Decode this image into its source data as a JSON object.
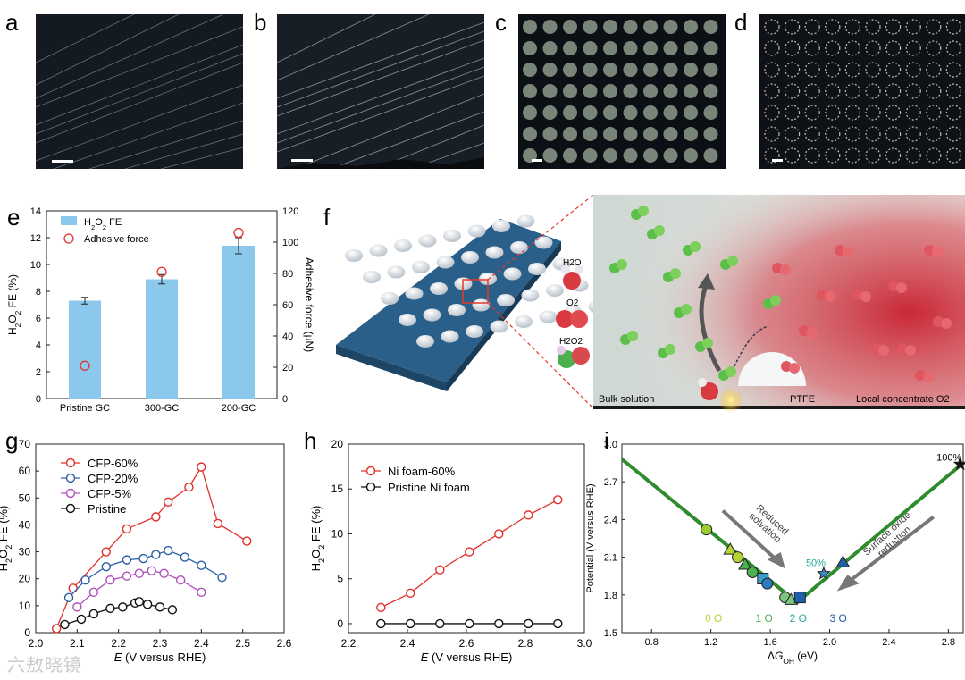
{
  "panels": {
    "a": "a",
    "b": "b",
    "c": "c",
    "d": "d",
    "e": "e",
    "f": "f",
    "g": "g",
    "h": "h",
    "i": "i"
  },
  "panel_f": {
    "molecules": [
      "H2O",
      "O2",
      "H2O2"
    ],
    "labels": {
      "bulk": "Bulk solution",
      "ptfe": "PTFE",
      "local": "Local concentrate O2"
    }
  },
  "watermark": "六敖晓镜",
  "colors": {
    "blue_bar": "#8cc8ec",
    "red": "#e2302a",
    "blue": "#2c5fa8",
    "purple": "#b24fbf",
    "black": "#111111",
    "green": "#2e8b2e"
  },
  "chart_data": [
    {
      "id": "e",
      "type": "bar",
      "categories": [
        "Pristine GC",
        "300-GC",
        "200-GC"
      ],
      "series": [
        {
          "name": "H2O2 FE",
          "values": [
            7.3,
            8.9,
            11.4
          ],
          "errors": [
            0.25,
            0.35,
            0.6
          ],
          "axis": "left"
        },
        {
          "name": "Adhesive force",
          "values": [
            21,
            81,
            106
          ],
          "axis": "right",
          "marker": "open-circle"
        }
      ],
      "ylabel": "H2O2 FE (%)",
      "ylabel_right": "Adhesive force (μN)",
      "ylim": [
        0,
        14
      ],
      "ylim_right": [
        0,
        120
      ],
      "yticks": [
        0,
        2,
        4,
        6,
        8,
        10,
        12,
        14
      ],
      "yticks_right": [
        0,
        20,
        40,
        60,
        80,
        100,
        120
      ],
      "legend": [
        "H2O2 FE",
        "Adhesive force"
      ]
    },
    {
      "id": "g",
      "type": "line",
      "xlabel": "E (V versus RHE)",
      "ylabel": "H2O2 FE (%)",
      "xlim": [
        2.0,
        2.6
      ],
      "ylim": [
        0,
        70
      ],
      "xticks": [
        2.0,
        2.1,
        2.2,
        2.3,
        2.4,
        2.5,
        2.6
      ],
      "yticks": [
        0,
        10,
        20,
        30,
        40,
        50,
        60,
        70
      ],
      "series": [
        {
          "name": "CFP-60%",
          "color": "#e2302a",
          "x": [
            2.05,
            2.09,
            2.17,
            2.22,
            2.29,
            2.32,
            2.37,
            2.4,
            2.44,
            2.51
          ],
          "y": [
            1.5,
            16.5,
            30,
            38.5,
            43,
            48.5,
            54,
            61.5,
            40.5,
            34
          ]
        },
        {
          "name": "CFP-20%",
          "color": "#2c5fa8",
          "x": [
            2.08,
            2.12,
            2.17,
            2.22,
            2.26,
            2.29,
            2.32,
            2.36,
            2.4,
            2.45
          ],
          "y": [
            13,
            19.5,
            24.5,
            27,
            27.5,
            29,
            30.5,
            28,
            25,
            20.5
          ]
        },
        {
          "name": "CFP-5%",
          "color": "#b24fbf",
          "x": [
            2.1,
            2.14,
            2.18,
            2.22,
            2.25,
            2.28,
            2.31,
            2.35,
            2.4
          ],
          "y": [
            9.5,
            15,
            19.5,
            21,
            22,
            23,
            22,
            19.5,
            15
          ]
        },
        {
          "name": "Pristine",
          "color": "#111111",
          "x": [
            2.07,
            2.11,
            2.14,
            2.18,
            2.21,
            2.24,
            2.25,
            2.27,
            2.3,
            2.33
          ],
          "y": [
            3,
            5,
            7,
            9,
            9.5,
            11,
            11.5,
            10.5,
            9.5,
            8.5
          ]
        }
      ],
      "legend": [
        "CFP-60%",
        "CFP-20%",
        "CFP-5%",
        "Pristine"
      ]
    },
    {
      "id": "h",
      "type": "line",
      "xlabel": "E (V versus RHE)",
      "ylabel": "H2O2 FE (%)",
      "xlim": [
        2.2,
        3.0
      ],
      "ylim": [
        -1,
        20
      ],
      "xticks": [
        2.2,
        2.4,
        2.6,
        2.8,
        3.0
      ],
      "yticks": [
        0,
        5,
        10,
        15,
        20
      ],
      "series": [
        {
          "name": "Ni foam-60%",
          "color": "#e2302a",
          "x": [
            2.31,
            2.41,
            2.51,
            2.61,
            2.71,
            2.81,
            2.91
          ],
          "y": [
            1.8,
            3.4,
            6.0,
            8.0,
            10.0,
            12.1,
            13.8
          ]
        },
        {
          "name": "Pristine Ni foam",
          "color": "#111111",
          "x": [
            2.31,
            2.41,
            2.51,
            2.61,
            2.71,
            2.81,
            2.91
          ],
          "y": [
            0,
            0,
            0,
            0,
            0,
            0,
            0
          ]
        }
      ],
      "legend": [
        "Ni foam-60%",
        "Pristine Ni foam"
      ]
    },
    {
      "id": "i",
      "type": "line",
      "xlabel": "ΔGOH (eV)",
      "ylabel": "Potential (V versus RHE)",
      "xlim": [
        0.6,
        2.9
      ],
      "ylim": [
        1.5,
        3.0
      ],
      "xticks": [
        0.8,
        1.2,
        1.6,
        2.0,
        2.4,
        2.8
      ],
      "yticks": [
        1.5,
        1.8,
        2.1,
        2.4,
        2.7,
        3.0
      ],
      "volcano": {
        "x": [
          0.6,
          1.78,
          2.9
        ],
        "y": [
          2.88,
          1.74,
          2.85
        ]
      },
      "points": [
        {
          "x": 1.17,
          "y": 2.32,
          "marker": "circle",
          "color": "#9acd32"
        },
        {
          "x": 1.33,
          "y": 2.16,
          "marker": "triangle",
          "color": "#b5d334"
        },
        {
          "x": 1.38,
          "y": 2.1,
          "marker": "circle",
          "color": "#b5d334"
        },
        {
          "x": 1.43,
          "y": 2.04,
          "marker": "triangle",
          "color": "#4caf50"
        },
        {
          "x": 1.48,
          "y": 1.98,
          "marker": "circle",
          "color": "#4caf50"
        },
        {
          "x": 1.55,
          "y": 1.93,
          "marker": "square",
          "color": "#3b9ec9"
        },
        {
          "x": 1.58,
          "y": 1.89,
          "marker": "circle",
          "color": "#2a7bbf"
        },
        {
          "x": 1.7,
          "y": 1.78,
          "marker": "circle",
          "color": "#7cc47c"
        },
        {
          "x": 1.74,
          "y": 1.76,
          "marker": "triangle",
          "color": "#7cc47c"
        },
        {
          "x": 1.8,
          "y": 1.78,
          "marker": "square",
          "color": "#1f5fa8"
        },
        {
          "x": 1.96,
          "y": 1.97,
          "marker": "star",
          "color": "#3b8dc9"
        },
        {
          "x": 2.09,
          "y": 2.06,
          "marker": "triangle",
          "color": "#1f5fa8"
        },
        {
          "x": 2.88,
          "y": 2.84,
          "marker": "star",
          "color": "#111111"
        }
      ],
      "annotations": [
        {
          "text": "100%",
          "x": 2.72,
          "y": 2.87
        },
        {
          "text": "50%",
          "x": 1.84,
          "y": 2.03
        },
        {
          "text": "Reduced solvation",
          "x": 1.6,
          "y": 2.38
        },
        {
          "text": "Surface oxide reduction",
          "x": 2.4,
          "y": 2.27
        }
      ],
      "count_labels": [
        {
          "text": "0 O",
          "color": "#b5d334",
          "x": 1.16
        },
        {
          "text": "1 O",
          "color": "#4caf50",
          "x": 1.5
        },
        {
          "text": "2 O",
          "color": "#2aa89a",
          "x": 1.73
        },
        {
          "text": "3 O",
          "color": "#1f5fa8",
          "x": 2.0
        }
      ]
    }
  ]
}
